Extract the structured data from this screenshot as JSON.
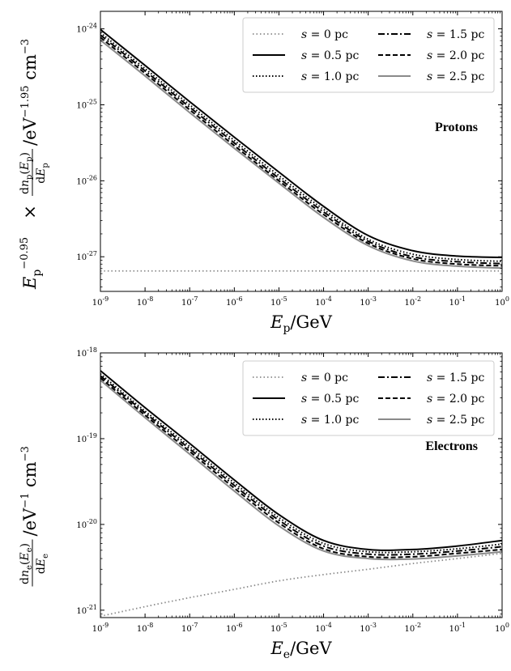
{
  "chart_data": [
    {
      "type": "line",
      "x_scale": "log",
      "y_scale": "log",
      "xlim": [
        1e-09,
        1
      ],
      "ylim": [
        3.5e-28,
        1.7e-24
      ],
      "x_ticks": [
        "10",
        "10",
        "10",
        "10",
        "10",
        "10",
        "10",
        "10",
        "10",
        "10"
      ],
      "x_tick_exponents": [
        "-9",
        "-8",
        "-7",
        "-6",
        "-5",
        "-4",
        "-3",
        "-2",
        "-1",
        "0"
      ],
      "y_ticks": [
        "10",
        "10",
        "10",
        "10"
      ],
      "y_tick_exponents": [
        "-27",
        "-26",
        "-25",
        "-24"
      ],
      "xlabel_main": "E",
      "xlabel_sub": "p",
      "xlabel_unit": "/GeV",
      "ylabel": {
        "pre": "E",
        "pre_sub": "p",
        "pre_sup": "−0.95",
        "times": "×",
        "num": "dn",
        "num_sub": "p",
        "num_arg": "(E",
        "num_arg_sub": "p",
        "num_close": ")",
        "den": "dE",
        "den_sub": "p",
        "unit": "/eV",
        "unit_sup": "−1.95",
        "unit2": "cm",
        "unit2_sup": "−3"
      },
      "annotation": "Protons",
      "grid": false,
      "legend_position": "top-right",
      "x": [
        1e-09,
        1e-08,
        1e-07,
        1e-06,
        1e-05,
        0.0001,
        0.001,
        0.01,
        0.1,
        1
      ],
      "series": [
        {
          "name": "s = 0 pc",
          "style": "dotted-gray",
          "values": [
            6.5e-28,
            6.5e-28,
            6.5e-28,
            6.5e-28,
            6.5e-28,
            6.5e-28,
            6.5e-28,
            6.5e-28,
            6.5e-28,
            6.5e-28
          ]
        },
        {
          "name": "s = 0.5 pc",
          "style": "solid-black",
          "values": [
            9.8e-25,
            3.3e-25,
            1.1e-25,
            3.75e-26,
            1.3e-26,
            4.6e-27,
            1.9e-27,
            1.2e-27,
            1.02e-27,
            9.8e-28
          ]
        },
        {
          "name": "s = 1.0 pc",
          "style": "dotted-black",
          "values": [
            8.9e-25,
            3e-25,
            1e-25,
            3.4e-26,
            1.17e-26,
            4.2e-27,
            1.7e-27,
            1.08e-27,
            9.2e-28,
            8.7e-28
          ]
        },
        {
          "name": "s = 1.5 pc",
          "style": "dashdot-black",
          "values": [
            8.3e-25,
            2.8e-25,
            9.3e-26,
            3.15e-26,
            1.08e-26,
            3.9e-27,
            1.6e-27,
            1e-27,
            8.6e-28,
            8.1e-28
          ]
        },
        {
          "name": "s = 2.0 pc",
          "style": "dashed-black",
          "values": [
            7.7e-25,
            2.6e-25,
            8.6e-26,
            2.9e-26,
            1e-26,
            3.6e-27,
            1.5e-27,
            9.4e-28,
            8e-28,
            7.6e-28
          ]
        },
        {
          "name": "s = 2.5 pc",
          "style": "solid-gray",
          "values": [
            7.1e-25,
            2.4e-25,
            7.9e-26,
            2.68e-26,
            9.3e-27,
            3.3e-27,
            1.4e-27,
            8.8e-28,
            7.5e-28,
            7.1e-28
          ]
        }
      ]
    },
    {
      "type": "line",
      "x_scale": "log",
      "y_scale": "log",
      "xlim": [
        1e-09,
        1
      ],
      "ylim": [
        8.2e-22,
        1e-18
      ],
      "x_ticks": [
        "10",
        "10",
        "10",
        "10",
        "10",
        "10",
        "10",
        "10",
        "10",
        "10"
      ],
      "x_tick_exponents": [
        "-9",
        "-8",
        "-7",
        "-6",
        "-5",
        "-4",
        "-3",
        "-2",
        "-1",
        "0"
      ],
      "y_ticks": [
        "10",
        "10",
        "10",
        "10"
      ],
      "y_tick_exponents": [
        "-21",
        "-20",
        "-19",
        "-18"
      ],
      "xlabel_main": "E",
      "xlabel_sub": "e",
      "xlabel_unit": "/GeV",
      "ylabel": {
        "num": "dn",
        "num_sub": "e",
        "num_arg": "(E",
        "num_arg_sub": "e",
        "num_close": ")",
        "den": "dE",
        "den_sub": "e",
        "unit": "/eV",
        "unit_sup": "−1",
        "unit2": "cm",
        "unit2_sup": "−3"
      },
      "annotation": "Electrons",
      "grid": false,
      "legend_position": "top-right",
      "x": [
        1e-09,
        1e-08,
        1e-07,
        1e-06,
        1e-05,
        0.0001,
        0.001,
        0.01,
        0.1,
        1
      ],
      "series": [
        {
          "name": "s = 0 pc",
          "style": "dotted-gray",
          "values": [
            8.5e-22,
            1.1e-21,
            1.4e-21,
            1.75e-21,
            2.2e-21,
            2.6e-21,
            3e-21,
            3.5e-21,
            4e-21,
            4.6e-21
          ]
        },
        {
          "name": "s = 0.5 pc",
          "style": "solid-black",
          "values": [
            6.2e-19,
            2.3e-19,
            8.8e-20,
            3.3e-20,
            1.3e-20,
            6.5e-21,
            5.1e-21,
            5.1e-21,
            5.6e-21,
            6.5e-21
          ]
        },
        {
          "name": "s = 1.0 pc",
          "style": "dotted-black",
          "values": [
            5.7e-19,
            2.1e-19,
            8.1e-20,
            3.05e-20,
            1.2e-20,
            6e-21,
            4.8e-21,
            4.8e-21,
            5.2e-21,
            5.9e-21
          ]
        },
        {
          "name": "s = 1.5 pc",
          "style": "dashdot-black",
          "values": [
            5.4e-19,
            2e-19,
            7.6e-20,
            2.85e-20,
            1.12e-20,
            5.6e-21,
            4.5e-21,
            4.5e-21,
            4.9e-21,
            5.5e-21
          ]
        },
        {
          "name": "s = 2.0 pc",
          "style": "dashed-black",
          "values": [
            5.1e-19,
            1.88e-19,
            7.1e-20,
            2.65e-20,
            1.04e-20,
            5.2e-21,
            4.2e-21,
            4.2e-21,
            4.6e-21,
            5.1e-21
          ]
        },
        {
          "name": "s = 2.5 pc",
          "style": "solid-gray",
          "values": [
            4.8e-19,
            1.76e-19,
            6.6e-20,
            2.45e-20,
            9.6e-21,
            4.9e-21,
            4e-21,
            3.95e-21,
            4.3e-21,
            4.8e-21
          ]
        }
      ]
    }
  ],
  "styles": {
    "dotted-gray": {
      "color": "#8a8a8a",
      "dash": "1.5,3",
      "width": 1.8
    },
    "solid-black": {
      "color": "#000000",
      "dash": "",
      "width": 2
    },
    "dotted-black": {
      "color": "#000000",
      "dash": "1.5,2.5",
      "width": 2
    },
    "dashdot-black": {
      "color": "#000000",
      "dash": "8,3,2,3",
      "width": 2
    },
    "dashed-black": {
      "color": "#000000",
      "dash": "6,3",
      "width": 2
    },
    "solid-gray": {
      "color": "#8a8a8a",
      "dash": "",
      "width": 2
    }
  }
}
